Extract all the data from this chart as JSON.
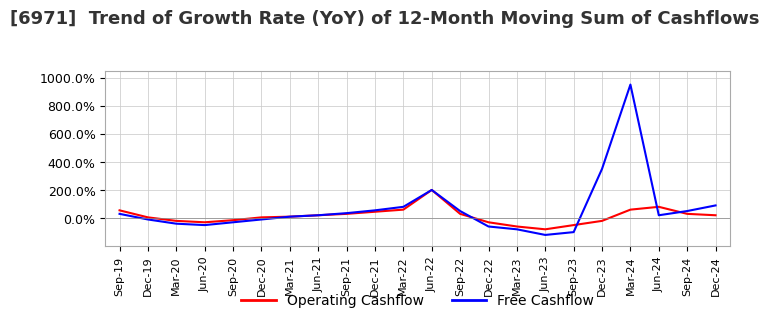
{
  "title": "[6971]  Trend of Growth Rate (YoY) of 12-Month Moving Sum of Cashflows",
  "title_fontsize": 13,
  "ylim": [
    -200,
    1050
  ],
  "yticks": [
    0,
    200,
    400,
    600,
    800,
    1000
  ],
  "ytick_labels": [
    "0.0%",
    "200.0%",
    "400.0%",
    "600.0%",
    "800.0%",
    "1000.0%"
  ],
  "legend_labels": [
    "Operating Cashflow",
    "Free Cashflow"
  ],
  "legend_colors": [
    "red",
    "blue"
  ],
  "x_labels": [
    "Sep-19",
    "Dec-19",
    "Mar-20",
    "Jun-20",
    "Sep-20",
    "Dec-20",
    "Mar-21",
    "Jun-21",
    "Sep-21",
    "Dec-21",
    "Mar-22",
    "Jun-22",
    "Sep-22",
    "Dec-22",
    "Mar-23",
    "Jun-23",
    "Sep-23",
    "Dec-23",
    "Mar-24",
    "Jun-24",
    "Sep-24",
    "Dec-24"
  ],
  "operating_cashflow": [
    55,
    5,
    -20,
    -30,
    -15,
    5,
    10,
    20,
    30,
    45,
    60,
    200,
    30,
    -30,
    -60,
    -80,
    -50,
    -20,
    60,
    80,
    30,
    20
  ],
  "free_cashflow": [
    30,
    -10,
    -40,
    -50,
    -30,
    -10,
    10,
    20,
    35,
    55,
    80,
    200,
    50,
    -60,
    -80,
    -120,
    -100,
    350,
    950,
    20,
    50,
    90
  ],
  "background_color": "#ffffff",
  "grid_color": "#cccccc",
  "line_width": 1.5
}
